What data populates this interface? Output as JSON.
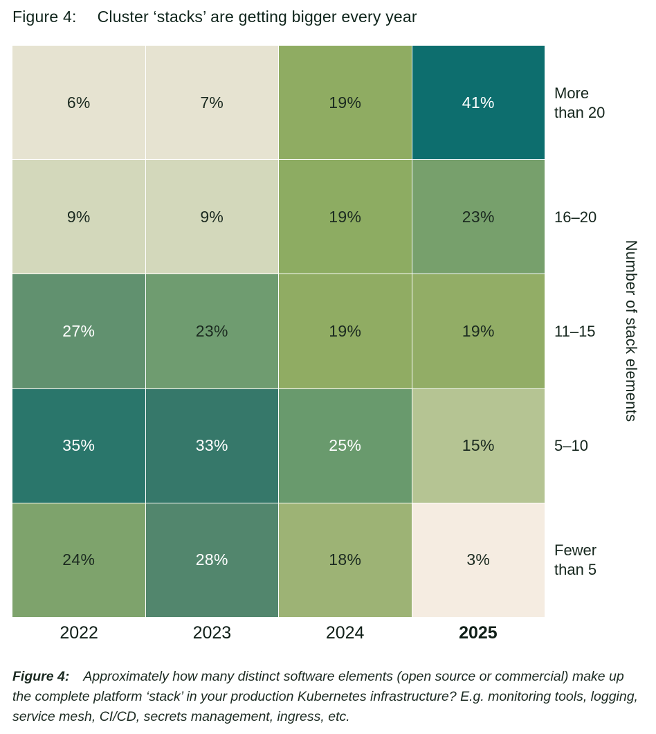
{
  "title": {
    "label": "Figure 4:",
    "text": "Cluster ‘stacks’ are getting bigger every year"
  },
  "chart_data": {
    "type": "heatmap",
    "title": "Cluster ‘stacks’ are getting bigger every year",
    "x_categories": [
      "2022",
      "2023",
      "2024",
      "2025"
    ],
    "y_categories": [
      "More than 20",
      "16–20",
      "11–15",
      "5–10",
      "Fewer than 5"
    ],
    "y_axis_label": "Number of stack elements",
    "values_percent": [
      [
        6,
        7,
        19,
        41
      ],
      [
        9,
        9,
        19,
        23
      ],
      [
        27,
        23,
        19,
        19
      ],
      [
        35,
        33,
        25,
        15
      ],
      [
        24,
        28,
        18,
        3
      ]
    ],
    "rows": [
      {
        "row_label": "More\nthan 20",
        "cells": [
          {
            "label": "6%",
            "bg": "#e6e3d1",
            "fg": "#1b2a20"
          },
          {
            "label": "7%",
            "bg": "#e6e3d1",
            "fg": "#1b2a20"
          },
          {
            "label": "19%",
            "bg": "#8fac62",
            "fg": "#1b2a20"
          },
          {
            "label": "41%",
            "bg": "#0d6e6e",
            "fg": "#ffffff"
          }
        ]
      },
      {
        "row_label": "16–20",
        "cells": [
          {
            "label": "9%",
            "bg": "#d3d8bb",
            "fg": "#1b2a20"
          },
          {
            "label": "9%",
            "bg": "#d3d8bb",
            "fg": "#1b2a20"
          },
          {
            "label": "19%",
            "bg": "#8dac62",
            "fg": "#1b2a20"
          },
          {
            "label": "23%",
            "bg": "#77a06c",
            "fg": "#1b2a20"
          }
        ]
      },
      {
        "row_label": "11–15",
        "cells": [
          {
            "label": "27%",
            "bg": "#61916f",
            "fg": "#ffffff"
          },
          {
            "label": "23%",
            "bg": "#6f9c70",
            "fg": "#1b2a20"
          },
          {
            "label": "19%",
            "bg": "#90ac63",
            "fg": "#1b2a20"
          },
          {
            "label": "19%",
            "bg": "#92ad66",
            "fg": "#1b2a20"
          }
        ]
      },
      {
        "row_label": "5–10",
        "cells": [
          {
            "label": "35%",
            "bg": "#2a766b",
            "fg": "#ffffff"
          },
          {
            "label": "33%",
            "bg": "#36786a",
            "fg": "#ffffff"
          },
          {
            "label": "25%",
            "bg": "#699a6d",
            "fg": "#ffffff"
          },
          {
            "label": "15%",
            "bg": "#b5c493",
            "fg": "#1b2a20"
          }
        ]
      },
      {
        "row_label": "Fewer\nthan 5",
        "cells": [
          {
            "label": "24%",
            "bg": "#7ea36c",
            "fg": "#1b2a20"
          },
          {
            "label": "28%",
            "bg": "#52866d",
            "fg": "#ffffff"
          },
          {
            "label": "18%",
            "bg": "#9db375",
            "fg": "#1b2a20"
          },
          {
            "label": "3%",
            "bg": "#f5ece1",
            "fg": "#1b2a20"
          }
        ]
      }
    ],
    "x_labels": [
      {
        "label": "2022",
        "weight": "normal"
      },
      {
        "label": "2023",
        "weight": "normal"
      },
      {
        "label": "2024",
        "weight": "normal"
      },
      {
        "label": "2025",
        "weight": "bold"
      }
    ],
    "legend_position": "none",
    "grid": "thin-white-separators"
  },
  "caption": {
    "label": "Figure 4:",
    "text": "Approximately how many distinct software elements (open source or commercial) make up the complete platform ‘stack’ in your production Kubernetes infrastructure? E.g. monitoring tools, logging, service mesh, CI/CD, secrets management, ingress, etc."
  }
}
